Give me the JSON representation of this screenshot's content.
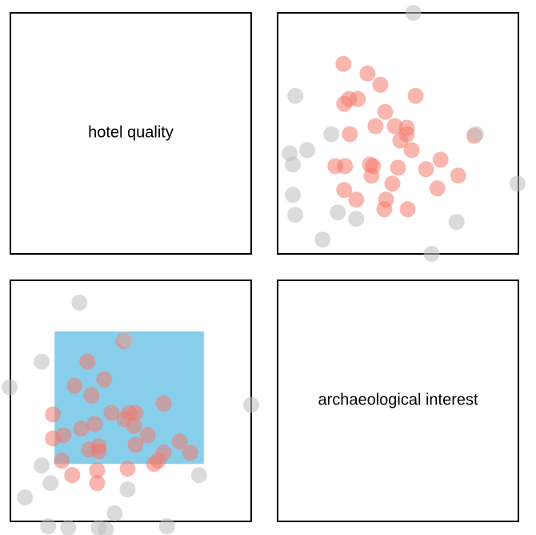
{
  "chart_data": {
    "type": "scatter",
    "description_labels": {
      "top_left": "hotel quality",
      "bottom_right": "archaeological interest"
    },
    "colors": {
      "selected": "#F47A6B",
      "unselected": "#BDBDBD",
      "brush": "#87CEEB",
      "frame": "#000000"
    },
    "dot_opacity": 0.55,
    "top_right_points": [
      {
        "x": 0.2733,
        "y": 0.7881,
        "selected": true
      },
      {
        "x": 0.3733,
        "y": 0.7483,
        "selected": true
      },
      {
        "x": 0.4267,
        "y": 0.702,
        "selected": true
      },
      {
        "x": 0.0733,
        "y": 0.6556,
        "selected": false
      },
      {
        "x": 0.3333,
        "y": 0.6424,
        "selected": true
      },
      {
        "x": 0.2967,
        "y": 0.6424,
        "selected": true
      },
      {
        "x": 0.5733,
        "y": 0.6556,
        "selected": true
      },
      {
        "x": 0.2767,
        "y": 0.6225,
        "selected": true
      },
      {
        "x": 0.4467,
        "y": 0.5894,
        "selected": true
      },
      {
        "x": 0.4067,
        "y": 0.5298,
        "selected": true
      },
      {
        "x": 0.4867,
        "y": 0.5298,
        "selected": true
      },
      {
        "x": 0.5367,
        "y": 0.5232,
        "selected": true
      },
      {
        "x": 0.5367,
        "y": 0.4967,
        "selected": true
      },
      {
        "x": 0.2233,
        "y": 0.4967,
        "selected": false
      },
      {
        "x": 0.3,
        "y": 0.4967,
        "selected": true
      },
      {
        "x": 0.51,
        "y": 0.4702,
        "selected": true
      },
      {
        "x": 0.8167,
        "y": 0.4901,
        "selected": true
      },
      {
        "x": 0.8233,
        "y": 0.4967,
        "selected": false
      },
      {
        "x": 0.1233,
        "y": 0.4305,
        "selected": false
      },
      {
        "x": 0.5567,
        "y": 0.4305,
        "selected": true
      },
      {
        "x": 0.05,
        "y": 0.4172,
        "selected": false
      },
      {
        "x": 0.6767,
        "y": 0.3907,
        "selected": true
      },
      {
        "x": 0.0633,
        "y": 0.3709,
        "selected": false
      },
      {
        "x": 0.24,
        "y": 0.3642,
        "selected": true
      },
      {
        "x": 0.28,
        "y": 0.3642,
        "selected": true
      },
      {
        "x": 0.3833,
        "y": 0.3709,
        "selected": true
      },
      {
        "x": 0.3967,
        "y": 0.3642,
        "selected": true
      },
      {
        "x": 0.5,
        "y": 0.3576,
        "selected": true
      },
      {
        "x": 0.6167,
        "y": 0.351,
        "selected": true
      },
      {
        "x": 0.39,
        "y": 0.3245,
        "selected": true
      },
      {
        "x": 0.75,
        "y": 0.3245,
        "selected": true
      },
      {
        "x": 0.4767,
        "y": 0.2914,
        "selected": true
      },
      {
        "x": 0.9967,
        "y": 0.2914,
        "selected": false
      },
      {
        "x": 0.2767,
        "y": 0.2649,
        "selected": true
      },
      {
        "x": 0.6633,
        "y": 0.2715,
        "selected": true
      },
      {
        "x": 0.0633,
        "y": 0.245,
        "selected": false
      },
      {
        "x": 0.3267,
        "y": 0.2252,
        "selected": true
      },
      {
        "x": 0.45,
        "y": 0.2252,
        "selected": true
      },
      {
        "x": 0.25,
        "y": 0.1722,
        "selected": false
      },
      {
        "x": 0.4433,
        "y": 0.1854,
        "selected": true
      },
      {
        "x": 0.54,
        "y": 0.1854,
        "selected": true
      },
      {
        "x": 0.0733,
        "y": 0.1623,
        "selected": false
      },
      {
        "x": 0.3267,
        "y": 0.1457,
        "selected": false
      },
      {
        "x": 0.7433,
        "y": 0.1325,
        "selected": false
      },
      {
        "x": 0.1867,
        "y": 0.0596,
        "selected": false
      },
      {
        "x": 0.64,
        "y": 0.0,
        "selected": false
      },
      {
        "x": 0.5633,
        "y": 1.0,
        "selected": false
      }
    ],
    "bottom_left_points": [
      {
        "x": 0.2867,
        "y": 0.9073,
        "selected": false
      },
      {
        "x": 0.47,
        "y": 0.7483,
        "selected": true
      },
      {
        "x": 0.48,
        "y": 0.755,
        "selected": false
      },
      {
        "x": 0.13,
        "y": 0.6623,
        "selected": false
      },
      {
        "x": 0.32,
        "y": 0.6623,
        "selected": true
      },
      {
        "x": 0.39,
        "y": 0.5894,
        "selected": true
      },
      {
        "x": 0.2667,
        "y": 0.5629,
        "selected": true
      },
      {
        "x": -0.0033,
        "y": 0.5563,
        "selected": false
      },
      {
        "x": 0.3367,
        "y": 0.5232,
        "selected": true
      },
      {
        "x": 0.6367,
        "y": 0.4901,
        "selected": true
      },
      {
        "x": 1.0,
        "y": 0.4834,
        "selected": false
      },
      {
        "x": 0.42,
        "y": 0.4503,
        "selected": true
      },
      {
        "x": 0.4933,
        "y": 0.4503,
        "selected": true
      },
      {
        "x": 0.52,
        "y": 0.4503,
        "selected": true
      },
      {
        "x": 0.1767,
        "y": 0.4437,
        "selected": true
      },
      {
        "x": 0.4733,
        "y": 0.4238,
        "selected": true
      },
      {
        "x": 0.35,
        "y": 0.404,
        "selected": true
      },
      {
        "x": 0.5133,
        "y": 0.3974,
        "selected": true
      },
      {
        "x": 0.2933,
        "y": 0.3841,
        "selected": true
      },
      {
        "x": 0.22,
        "y": 0.3576,
        "selected": true
      },
      {
        "x": 0.57,
        "y": 0.3576,
        "selected": true
      },
      {
        "x": 0.1767,
        "y": 0.3443,
        "selected": true
      },
      {
        "x": 0.7033,
        "y": 0.3311,
        "selected": true
      },
      {
        "x": 0.52,
        "y": 0.3179,
        "selected": true
      },
      {
        "x": 0.3667,
        "y": 0.3113,
        "selected": true
      },
      {
        "x": 0.3267,
        "y": 0.298,
        "selected": true
      },
      {
        "x": 0.3667,
        "y": 0.2914,
        "selected": true
      },
      {
        "x": 0.7467,
        "y": 0.2848,
        "selected": true
      },
      {
        "x": 0.6367,
        "y": 0.2848,
        "selected": true
      },
      {
        "x": 0.2133,
        "y": 0.2517,
        "selected": true
      },
      {
        "x": 0.6133,
        "y": 0.2517,
        "selected": true
      },
      {
        "x": 0.5967,
        "y": 0.2384,
        "selected": true
      },
      {
        "x": 0.13,
        "y": 0.2318,
        "selected": false
      },
      {
        "x": 0.4867,
        "y": 0.2185,
        "selected": true
      },
      {
        "x": 0.36,
        "y": 0.2119,
        "selected": true
      },
      {
        "x": 0.2567,
        "y": 0.1921,
        "selected": true
      },
      {
        "x": 0.7833,
        "y": 0.1921,
        "selected": false
      },
      {
        "x": 0.1667,
        "y": 0.1589,
        "selected": false
      },
      {
        "x": 0.36,
        "y": 0.1589,
        "selected": true
      },
      {
        "x": 0.4867,
        "y": 0.1325,
        "selected": false
      },
      {
        "x": 0.06,
        "y": 0.0993,
        "selected": false
      },
      {
        "x": 0.4333,
        "y": 0.0331,
        "selected": false
      },
      {
        "x": 0.1567,
        "y": -0.0199,
        "selected": false
      },
      {
        "x": 0.24,
        "y": -0.0265,
        "selected": false
      },
      {
        "x": 0.3667,
        "y": -0.0265,
        "selected": false
      },
      {
        "x": 0.65,
        "y": -0.0199,
        "selected": false
      },
      {
        "x": 0.3967,
        "y": -0.0331,
        "selected": false
      }
    ],
    "brush_range": {
      "x": [
        0.1833,
        0.8033
      ],
      "y": [
        0.2384,
        0.7881
      ]
    }
  }
}
